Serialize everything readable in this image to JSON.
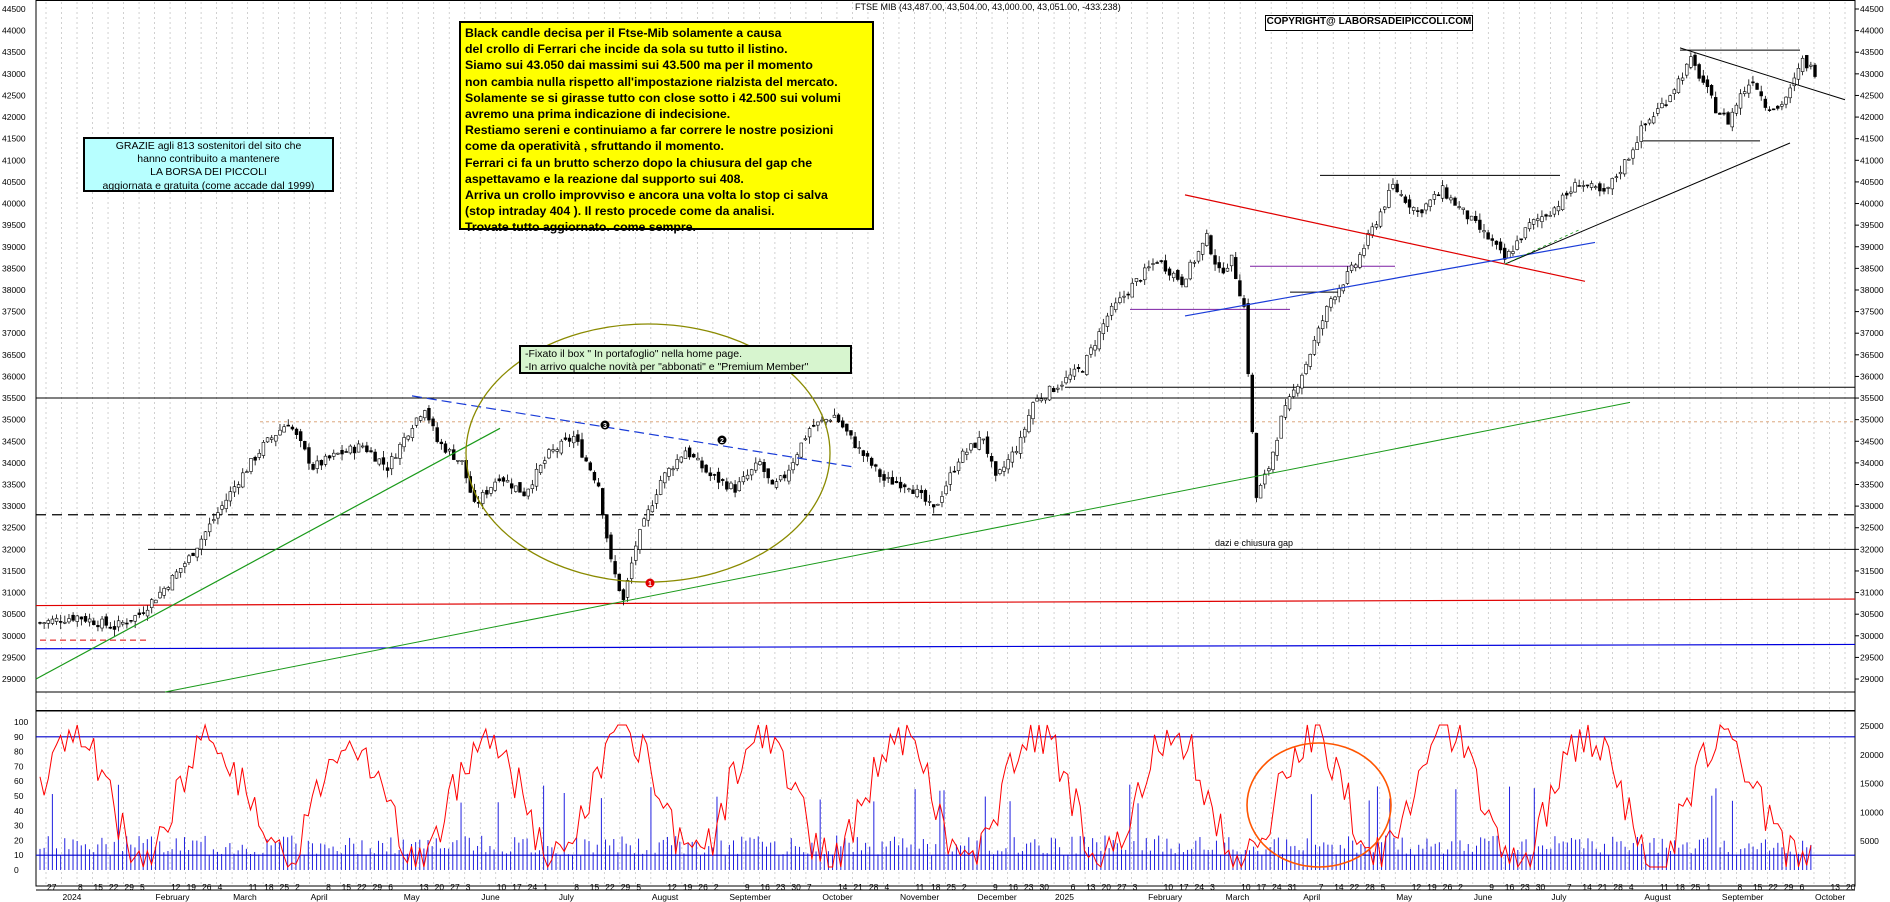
{
  "header": {
    "title": "FTSE MIB (43,487.00, 43,504.00, 43,000.00, 43,051.00, -433.238)"
  },
  "notes": {
    "main": [
      "Black candle decisa per il Ftse-Mib solamente a causa",
      "del crollo di Ferrari  che incide da sola su tutto il listino.",
      "Siamo sui 43.050 dai massimi sui 43.500 ma per il momento",
      "non cambia nulla rispetto all'impostazione rialzista del mercato.",
      "Solamente se si girasse tutto con close sotto i 42.500 sui volumi",
      "avremo una prima indicazione di indecisione.",
      "Restiamo sereni e continuiamo a far correre le nostre posizioni",
      "come da operatività , sfruttando il momento.",
      "Ferrari ci fa un brutto scherzo dopo la chiusura del gap che",
      "aspettavamo e la reazione dal supporto sui 408.",
      "Arriva un crollo improvviso e ancora una volta lo stop ci salva",
      "(stop intraday 404 ). Il resto procede come da analisi.",
      "Trovate tutto aggiornato. come sempre."
    ],
    "thanks": [
      "GRAZIE  agli 813  sostenitori del sito che",
      "hanno contribuito a mantenere",
      "LA BORSA DEI PICCOLI",
      "aggiornata e gratuita (come accade dal 1999)"
    ],
    "update": [
      "-Fixato il box \" In portafoglio\" nella home page.",
      "-In arrivo qualche novità per \"abbonati\" e \"Premium Member\""
    ],
    "copyright": "COPYRIGHT@ LABORSADEIPICCOLI.COM",
    "annotation": "dazi e chiusura gap"
  },
  "markers": [
    "1",
    "2",
    "3"
  ],
  "chart_data": {
    "type": "candlestick",
    "x_ticks": [
      "27",
      "2024",
      "8",
      "15",
      "22",
      "29",
      "5",
      "February",
      "12",
      "19",
      "26",
      "4",
      "March",
      "11",
      "18",
      "25",
      "2",
      "April",
      "8",
      "15",
      "22",
      "29",
      "6",
      "May",
      "13",
      "20",
      "27",
      "3",
      "June",
      "10",
      "17",
      "24",
      "1",
      "July",
      "8",
      "15",
      "22",
      "29",
      "5",
      "August",
      "12",
      "19",
      "26",
      "2",
      "September",
      "9",
      "16",
      "23",
      "30",
      "7",
      "October",
      "14",
      "21",
      "28",
      "4",
      "November",
      "11",
      "18",
      "25",
      "2",
      "December",
      "9",
      "16",
      "23",
      "30",
      "2025",
      "6",
      "13",
      "20",
      "27",
      "3",
      "February",
      "10",
      "17",
      "24",
      "3",
      "March",
      "10",
      "17",
      "24",
      "31",
      "April",
      "7",
      "14",
      "22",
      "28",
      "5",
      "May",
      "12",
      "19",
      "26",
      "2",
      "June",
      "9",
      "16",
      "23",
      "30",
      "July",
      "7",
      "14",
      "21",
      "28",
      "4",
      "August",
      "11",
      "18",
      "25",
      "1",
      "September",
      "8",
      "15",
      "22",
      "29",
      "6",
      "October",
      "13",
      "20"
    ],
    "price_axis": {
      "min": 28500,
      "max": 44500,
      "step": 500,
      "labels": [
        "44500",
        "44000",
        "43500",
        "43000",
        "42500",
        "42000",
        "41500",
        "41000",
        "40500",
        "40000",
        "39500",
        "39000",
        "38500",
        "38000",
        "37500",
        "37000",
        "36500",
        "36000",
        "35500",
        "35000",
        "34500",
        "34000",
        "33500",
        "33000",
        "32500",
        "32000",
        "31500",
        "31000",
        "30500",
        "30000",
        "29500",
        "29000"
      ]
    },
    "oscillator_axis": {
      "min": 0,
      "max": 100,
      "labels": [
        "100",
        "90",
        "80",
        "70",
        "60",
        "50",
        "40",
        "30",
        "20",
        "10",
        "0"
      ]
    },
    "volume_axis": {
      "min": 0,
      "max": 25000,
      "labels": [
        "25000",
        "20000",
        "15000",
        "10000",
        "5000"
      ]
    },
    "price_series": [
      {
        "x": 0,
        "y": 30300
      },
      {
        "x": 3,
        "y": 30450
      },
      {
        "x": 6,
        "y": 30200
      },
      {
        "x": 8,
        "y": 30500
      },
      {
        "x": 10,
        "y": 31100
      },
      {
        "x": 12,
        "y": 31800
      },
      {
        "x": 14,
        "y": 32700
      },
      {
        "x": 16,
        "y": 33600
      },
      {
        "x": 18,
        "y": 34400
      },
      {
        "x": 20,
        "y": 34950
      },
      {
        "x": 22,
        "y": 33900
      },
      {
        "x": 24,
        "y": 34200
      },
      {
        "x": 26,
        "y": 34400
      },
      {
        "x": 28,
        "y": 33900
      },
      {
        "x": 30,
        "y": 34900
      },
      {
        "x": 31,
        "y": 35300
      },
      {
        "x": 32,
        "y": 34500
      },
      {
        "x": 34,
        "y": 34000
      },
      {
        "x": 35,
        "y": 33000
      },
      {
        "x": 37,
        "y": 33700
      },
      {
        "x": 39,
        "y": 33300
      },
      {
        "x": 41,
        "y": 34200
      },
      {
        "x": 43,
        "y": 34600
      },
      {
        "x": 45,
        "y": 33500
      },
      {
        "x": 46,
        "y": 31700
      },
      {
        "x": 47,
        "y": 30800
      },
      {
        "x": 48,
        "y": 32100
      },
      {
        "x": 50,
        "y": 33600
      },
      {
        "x": 52,
        "y": 34300
      },
      {
        "x": 54,
        "y": 33700
      },
      {
        "x": 56,
        "y": 33400
      },
      {
        "x": 58,
        "y": 34000
      },
      {
        "x": 59,
        "y": 33400
      },
      {
        "x": 60,
        "y": 33700
      },
      {
        "x": 62,
        "y": 34800
      },
      {
        "x": 64,
        "y": 35100
      },
      {
        "x": 66,
        "y": 34300
      },
      {
        "x": 68,
        "y": 33600
      },
      {
        "x": 70,
        "y": 33500
      },
      {
        "x": 72,
        "y": 32900
      },
      {
        "x": 74,
        "y": 34100
      },
      {
        "x": 76,
        "y": 34600
      },
      {
        "x": 77,
        "y": 33600
      },
      {
        "x": 79,
        "y": 34500
      },
      {
        "x": 80,
        "y": 35400
      },
      {
        "x": 82,
        "y": 35800
      },
      {
        "x": 84,
        "y": 36200
      },
      {
        "x": 86,
        "y": 37400
      },
      {
        "x": 88,
        "y": 38100
      },
      {
        "x": 90,
        "y": 38700
      },
      {
        "x": 92,
        "y": 38200
      },
      {
        "x": 94,
        "y": 39200
      },
      {
        "x": 95,
        "y": 38400
      },
      {
        "x": 96,
        "y": 38700
      },
      {
        "x": 97,
        "y": 37600
      },
      {
        "x": 98,
        "y": 33200
      },
      {
        "x": 99,
        "y": 33900
      },
      {
        "x": 100,
        "y": 35000
      },
      {
        "x": 102,
        "y": 36300
      },
      {
        "x": 104,
        "y": 37800
      },
      {
        "x": 106,
        "y": 38600
      },
      {
        "x": 108,
        "y": 39800
      },
      {
        "x": 109,
        "y": 40400
      },
      {
        "x": 111,
        "y": 39800
      },
      {
        "x": 113,
        "y": 40300
      },
      {
        "x": 115,
        "y": 39700
      },
      {
        "x": 117,
        "y": 39100
      },
      {
        "x": 118,
        "y": 38700
      },
      {
        "x": 120,
        "y": 39500
      },
      {
        "x": 122,
        "y": 39900
      },
      {
        "x": 124,
        "y": 40500
      },
      {
        "x": 126,
        "y": 40200
      },
      {
        "x": 128,
        "y": 41100
      },
      {
        "x": 129,
        "y": 41700
      },
      {
        "x": 131,
        "y": 42400
      },
      {
        "x": 133,
        "y": 43300
      },
      {
        "x": 134,
        "y": 42800
      },
      {
        "x": 135,
        "y": 42200
      },
      {
        "x": 136,
        "y": 41900
      },
      {
        "x": 137,
        "y": 42500
      },
      {
        "x": 138,
        "y": 42900
      },
      {
        "x": 139,
        "y": 42300
      },
      {
        "x": 140,
        "y": 42200
      },
      {
        "x": 141,
        "y": 42600
      },
      {
        "x": 142,
        "y": 43300
      },
      {
        "x": 143,
        "y": 43050
      }
    ]
  }
}
